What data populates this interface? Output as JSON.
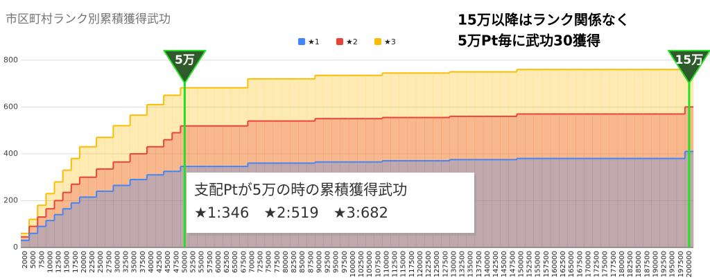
{
  "chart_data": {
    "type": "stepped-area",
    "title": "市区町村ランク別累積獲得武功",
    "categories": [
      "2000",
      "5000",
      "7500",
      "10000",
      "12500",
      "15000",
      "17500",
      "20000",
      "22500",
      "25000",
      "27500",
      "30000",
      "32500",
      "35000",
      "37500",
      "40000",
      "42500",
      "45000",
      "47500",
      "50000",
      "52500",
      "55000",
      "57500",
      "60000",
      "62500",
      "65000",
      "67500",
      "70000",
      "72500",
      "75000",
      "77500",
      "80000",
      "82500",
      "85000",
      "87500",
      "90000",
      "92500",
      "95000",
      "97500",
      "100000",
      "102500",
      "105000",
      "107500",
      "110000",
      "112500",
      "115000",
      "117500",
      "120000",
      "122500",
      "125000",
      "127500",
      "130000",
      "132500",
      "135000",
      "137500",
      "140000",
      "142500",
      "145000",
      "147500",
      "150000",
      "152500",
      "155000",
      "157500",
      "160000",
      "162500",
      "165000",
      "167500",
      "170000",
      "172500",
      "175000",
      "177500",
      "180000",
      "182500",
      "185000",
      "187500",
      "190000",
      "192500",
      "195000",
      "197500",
      "200000"
    ],
    "series": [
      {
        "name": "★1",
        "color": "#4285f4",
        "values": [
          30,
          60,
          90,
          115,
          140,
          165,
          190,
          215,
          215,
          240,
          240,
          265,
          265,
          290,
          290,
          310,
          310,
          325,
          325,
          346,
          346,
          346,
          346,
          346,
          346,
          346,
          346,
          360,
          360,
          360,
          360,
          360,
          360,
          360,
          360,
          365,
          365,
          365,
          365,
          365,
          365,
          365,
          365,
          370,
          370,
          370,
          370,
          370,
          370,
          370,
          370,
          375,
          375,
          375,
          375,
          375,
          375,
          375,
          375,
          380,
          380,
          380,
          380,
          380,
          380,
          380,
          380,
          380,
          380,
          380,
          380,
          380,
          380,
          380,
          380,
          380,
          380,
          380,
          380,
          410
        ]
      },
      {
        "name": "★2",
        "color": "#ea4335",
        "values": [
          45,
          90,
          130,
          165,
          200,
          235,
          270,
          300,
          300,
          335,
          335,
          365,
          365,
          400,
          400,
          430,
          430,
          460,
          490,
          519,
          519,
          519,
          519,
          519,
          519,
          519,
          519,
          540,
          540,
          540,
          540,
          540,
          540,
          540,
          540,
          550,
          550,
          550,
          550,
          550,
          550,
          550,
          550,
          555,
          555,
          555,
          555,
          555,
          555,
          555,
          555,
          560,
          560,
          560,
          560,
          560,
          560,
          560,
          560,
          570,
          570,
          570,
          570,
          570,
          570,
          570,
          570,
          570,
          570,
          570,
          570,
          570,
          570,
          570,
          570,
          570,
          570,
          570,
          570,
          600
        ]
      },
      {
        "name": "★3",
        "color": "#fbbc04",
        "values": [
          60,
          120,
          180,
          230,
          280,
          330,
          380,
          430,
          430,
          470,
          470,
          520,
          520,
          565,
          565,
          610,
          610,
          650,
          650,
          682,
          682,
          682,
          682,
          682,
          682,
          682,
          682,
          720,
          720,
          720,
          720,
          720,
          720,
          720,
          720,
          735,
          735,
          735,
          735,
          735,
          735,
          735,
          735,
          745,
          745,
          745,
          745,
          745,
          745,
          745,
          745,
          750,
          750,
          750,
          750,
          750,
          750,
          750,
          750,
          760,
          760,
          760,
          760,
          760,
          760,
          760,
          760,
          760,
          760,
          760,
          760,
          760,
          760,
          760,
          760,
          760,
          760,
          760,
          760,
          760
        ]
      }
    ],
    "ylim": [
      0,
      900
    ],
    "yticks": [
      0,
      200,
      400,
      600,
      800
    ],
    "grid": true,
    "markers": [
      {
        "label": "5万",
        "x": "50000"
      },
      {
        "label": "15万",
        "x": "200000"
      }
    ],
    "note_lines": [
      "15万以降はランク関係なく",
      "5万Pt毎に武功30獲得"
    ],
    "box_lines": [
      "支配Ptが5万の時の累積獲得武功",
      "★1:346　★2:519　★3:682"
    ]
  }
}
